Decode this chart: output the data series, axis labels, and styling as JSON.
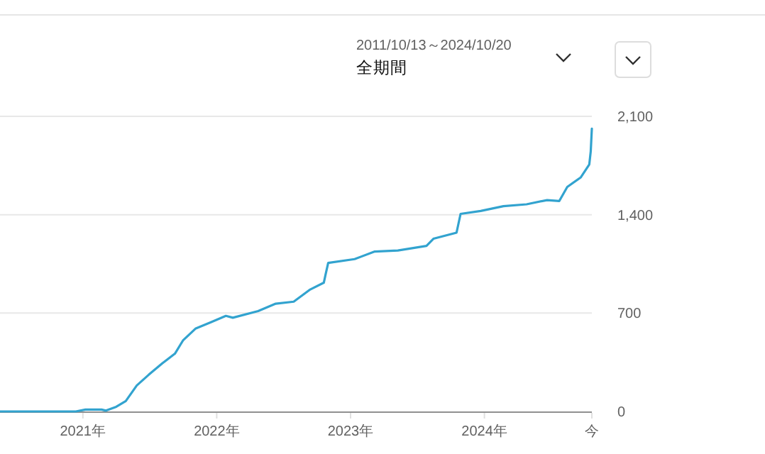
{
  "chart_data": {
    "type": "line",
    "annotations": [
      "2011/10/13～2024/10/20",
      "全期間"
    ],
    "x": [
      "2020-05-20",
      "2020-12-13",
      "2021-01-08",
      "2021-02-21",
      "2021-03-05",
      "2021-04-02",
      "2021-04-28",
      "2021-05-28",
      "2021-06-30",
      "2021-08-06",
      "2021-09-09",
      "2021-10-01",
      "2021-11-04",
      "2021-12-15",
      "2022-01-26",
      "2022-02-14",
      "2022-04-24",
      "2022-06-11",
      "2022-07-30",
      "2022-09-13",
      "2022-10-20",
      "2022-10-25",
      "2022-11-01",
      "2023-01-12",
      "2023-03-08",
      "2023-05-10",
      "2023-07-27",
      "2023-08-15",
      "2023-10-17",
      "2023-10-28",
      "2023-12-22",
      "2024-02-22",
      "2024-04-25",
      "2024-06-20",
      "2024-07-23",
      "2024-08-14",
      "2024-09-20",
      "2024-10-13",
      "2024-10-17",
      "2024-10-20"
    ],
    "series": [
      {
        "color": "#32a3cf",
        "values": [
          0,
          0,
          13,
          13,
          6,
          33,
          74,
          185,
          262,
          343,
          411,
          505,
          589,
          633,
          680,
          667,
          714,
          767,
          781,
          868,
          916,
          976,
          1057,
          1084,
          1138,
          1145,
          1178,
          1229,
          1272,
          1406,
          1427,
          1461,
          1474,
          1504,
          1497,
          1598,
          1666,
          1757,
          1851,
          2012
        ]
      }
    ],
    "xlim": [
      "2020-05-20",
      "2024-10-20"
    ],
    "xticks": [
      {
        "value": "2021-01-01",
        "label": "2021年"
      },
      {
        "value": "2022-01-01",
        "label": "2022年"
      },
      {
        "value": "2023-01-01",
        "label": "2023年"
      },
      {
        "value": "2024-01-01",
        "label": "2024年"
      },
      {
        "value": "2024-10-20",
        "label": "今"
      }
    ],
    "ylim": [
      0,
      2100
    ],
    "yticks": [
      0,
      700,
      {
        "value": 1400,
        "label": "1,400"
      },
      {
        "value": 2100,
        "label": "2,100"
      }
    ],
    "grid": "y"
  }
}
